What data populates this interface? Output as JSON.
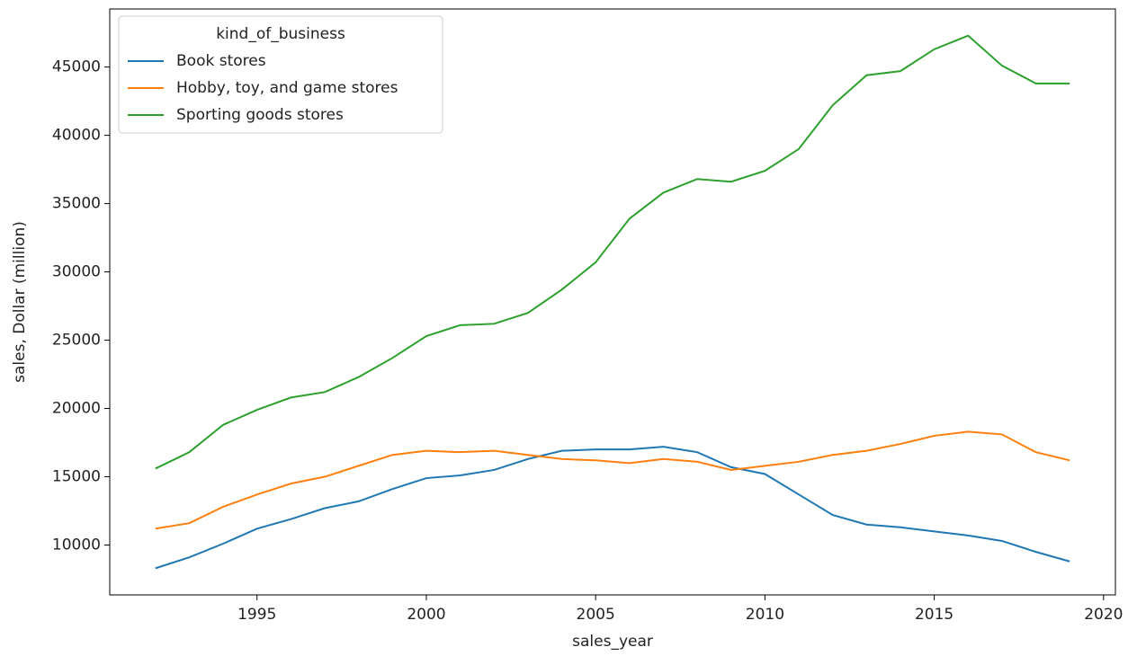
{
  "chart_data": {
    "type": "line",
    "xlabel": "sales_year",
    "ylabel": "sales, Dollar (million)",
    "legend_title": "kind_of_business",
    "legend_position": "upper left",
    "x": [
      1992,
      1993,
      1994,
      1995,
      1996,
      1997,
      1998,
      1999,
      2000,
      2001,
      2002,
      2003,
      2004,
      2005,
      2006,
      2007,
      2008,
      2009,
      2010,
      2011,
      2012,
      2013,
      2014,
      2015,
      2016,
      2017,
      2018,
      2019
    ],
    "series": [
      {
        "name": "Book stores",
        "color": "#1f77b4",
        "values": [
          8300,
          9100,
          10100,
          11200,
          11900,
          12700,
          13200,
          14100,
          14900,
          15100,
          15500,
          16300,
          16900,
          17000,
          17000,
          17200,
          16800,
          15700,
          15200,
          13700,
          12200,
          11500,
          11300,
          11000,
          10700,
          10300,
          9500,
          8800
        ]
      },
      {
        "name": "Hobby, toy, and game stores",
        "color": "#ff7f0e",
        "values": [
          11200,
          11600,
          12800,
          13700,
          14500,
          15000,
          15800,
          16600,
          16900,
          16800,
          16900,
          16600,
          16300,
          16200,
          16000,
          16300,
          16100,
          15500,
          15800,
          16100,
          16600,
          16900,
          17400,
          18000,
          18300,
          18100,
          16800,
          16200
        ]
      },
      {
        "name": "Sporting goods stores",
        "color": "#2ca02c",
        "values": [
          15600,
          16800,
          18800,
          19900,
          20800,
          21200,
          22300,
          23700,
          25300,
          26100,
          26200,
          27000,
          28700,
          30700,
          33900,
          35800,
          36800,
          36600,
          37400,
          39000,
          42200,
          44400,
          44700,
          46300,
          47300,
          45100,
          43800,
          43800
        ]
      }
    ],
    "xlim": [
      1990.65,
      2020.35
    ],
    "xticks": [
      1995,
      2000,
      2005,
      2010,
      2015,
      2020
    ],
    "ylim": [
      6350,
      49250
    ],
    "yticks": [
      10000,
      15000,
      20000,
      25000,
      30000,
      35000,
      40000,
      45000
    ]
  }
}
